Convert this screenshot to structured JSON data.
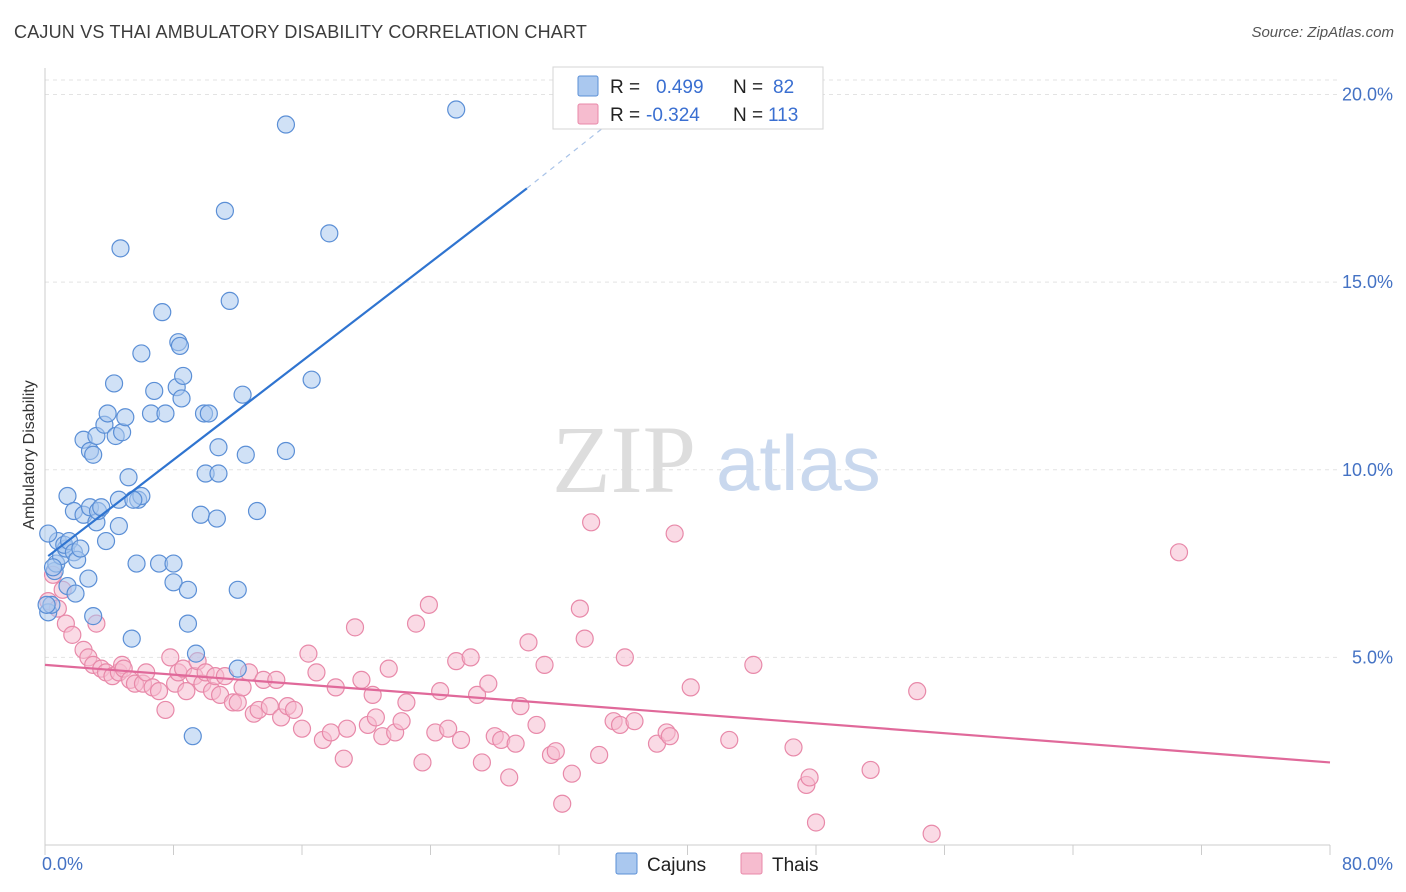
{
  "title": "CAJUN VS THAI AMBULATORY DISABILITY CORRELATION CHART",
  "source": "Source: ZipAtlas.com",
  "watermark": {
    "zip": "ZIP",
    "atlas": "atlas"
  },
  "colors": {
    "cajun_fill": "#aac8ef",
    "cajun_stroke": "#5b8fd6",
    "cajun_line": "#2f74d0",
    "thai_fill": "#f6bccf",
    "thai_stroke": "#e889a9",
    "thai_line": "#e0699a",
    "tick_text": "#4472c4",
    "grid": "#e3e3e3"
  },
  "legend": {
    "rows": [
      {
        "r_label": "R =",
        "r_value": "0.499",
        "n_label": "N =",
        "n_value": "82"
      },
      {
        "r_label": "R =",
        "r_value": "-0.324",
        "n_label": "N =",
        "n_value": "113"
      }
    ]
  },
  "chart_data": {
    "type": "scatter",
    "title": "CAJUN VS THAI AMBULATORY DISABILITY CORRELATION CHART",
    "xlabel": "",
    "ylabel": "Ambulatory Disability",
    "xlim": [
      0,
      80
    ],
    "ylim": [
      0,
      20.6
    ],
    "x_tick_labels": [
      "0.0%",
      "80.0%"
    ],
    "y_ticks": [
      5,
      10,
      15,
      20
    ],
    "y_tick_labels": [
      "5.0%",
      "10.0%",
      "15.0%",
      "20.0%"
    ],
    "grid": "horizontal dashed",
    "legend_position": "top-center",
    "series": [
      {
        "name": "Cajuns",
        "r": 0.499,
        "n": 82,
        "trend": {
          "x0": 0.2,
          "y0": 7.7,
          "x1": 30.0,
          "y1": 17.5,
          "dashed_to_x": 35.0,
          "dashed_to_y": 19.2
        },
        "points": [
          [
            0.2,
            6.2
          ],
          [
            0.4,
            6.4
          ],
          [
            0.6,
            7.3
          ],
          [
            0.8,
            8.1
          ],
          [
            0.7,
            7.5
          ],
          [
            1.0,
            7.7
          ],
          [
            1.3,
            7.9
          ],
          [
            1.2,
            8.0
          ],
          [
            1.5,
            8.1
          ],
          [
            1.8,
            7.8
          ],
          [
            2.0,
            7.6
          ],
          [
            2.2,
            7.9
          ],
          [
            1.4,
            6.9
          ],
          [
            1.9,
            6.7
          ],
          [
            2.7,
            7.1
          ],
          [
            1.4,
            9.3
          ],
          [
            1.8,
            8.9
          ],
          [
            2.4,
            8.8
          ],
          [
            2.8,
            9.0
          ],
          [
            3.2,
            8.6
          ],
          [
            3.3,
            8.9
          ],
          [
            3.5,
            9.0
          ],
          [
            2.4,
            10.8
          ],
          [
            2.8,
            10.5
          ],
          [
            3.2,
            10.9
          ],
          [
            3.0,
            10.4
          ],
          [
            3.7,
            11.2
          ],
          [
            3.9,
            11.5
          ],
          [
            4.4,
            10.9
          ],
          [
            4.8,
            11.0
          ],
          [
            5.0,
            11.4
          ],
          [
            4.6,
            8.5
          ],
          [
            3.8,
            8.1
          ],
          [
            4.6,
            9.2
          ],
          [
            5.2,
            9.8
          ],
          [
            5.8,
            9.2
          ],
          [
            6.0,
            9.3
          ],
          [
            5.5,
            9.2
          ],
          [
            4.3,
            12.3
          ],
          [
            6.6,
            11.5
          ],
          [
            6.0,
            13.1
          ],
          [
            6.8,
            12.1
          ],
          [
            7.5,
            11.5
          ],
          [
            7.3,
            14.2
          ],
          [
            8.2,
            12.2
          ],
          [
            8.3,
            13.4
          ],
          [
            8.4,
            13.3
          ],
          [
            8.5,
            11.9
          ],
          [
            8.6,
            12.5
          ],
          [
            9.9,
            11.5
          ],
          [
            10.2,
            11.5
          ],
          [
            10.8,
            10.6
          ],
          [
            10.0,
            9.9
          ],
          [
            10.8,
            9.9
          ],
          [
            12.5,
            10.4
          ],
          [
            9.7,
            8.8
          ],
          [
            10.7,
            8.7
          ],
          [
            13.2,
            8.9
          ],
          [
            4.7,
            15.9
          ],
          [
            11.2,
            16.9
          ],
          [
            11.5,
            14.5
          ],
          [
            12.3,
            12.0
          ],
          [
            15.0,
            10.5
          ],
          [
            16.6,
            12.4
          ],
          [
            17.7,
            16.3
          ],
          [
            15.0,
            19.2
          ],
          [
            25.6,
            19.6
          ],
          [
            3.0,
            6.1
          ],
          [
            5.4,
            5.5
          ],
          [
            5.7,
            7.5
          ],
          [
            7.1,
            7.5
          ],
          [
            8.0,
            7.5
          ],
          [
            8.0,
            7.0
          ],
          [
            8.9,
            6.8
          ],
          [
            12.0,
            6.8
          ],
          [
            8.9,
            5.9
          ],
          [
            9.4,
            5.1
          ],
          [
            12.0,
            4.7
          ],
          [
            9.2,
            2.9
          ],
          [
            0.1,
            6.4
          ],
          [
            0.2,
            8.3
          ],
          [
            0.5,
            7.4
          ]
        ]
      },
      {
        "name": "Thais",
        "r": -0.324,
        "n": 113,
        "trend": {
          "x0": 0,
          "y0": 4.8,
          "x1": 80,
          "y1": 2.2
        },
        "points": [
          [
            0.2,
            6.5
          ],
          [
            0.5,
            7.2
          ],
          [
            0.8,
            6.3
          ],
          [
            1.1,
            6.8
          ],
          [
            1.3,
            5.9
          ],
          [
            1.7,
            5.6
          ],
          [
            2.4,
            5.2
          ],
          [
            2.7,
            5.0
          ],
          [
            3.2,
            5.9
          ],
          [
            3.0,
            4.8
          ],
          [
            3.5,
            4.7
          ],
          [
            3.8,
            4.6
          ],
          [
            4.2,
            4.5
          ],
          [
            4.6,
            4.6
          ],
          [
            4.8,
            4.8
          ],
          [
            4.9,
            4.7
          ],
          [
            5.3,
            4.4
          ],
          [
            5.6,
            4.3
          ],
          [
            6.1,
            4.3
          ],
          [
            6.3,
            4.6
          ],
          [
            6.7,
            4.2
          ],
          [
            7.1,
            4.1
          ],
          [
            7.5,
            3.6
          ],
          [
            7.8,
            5.0
          ],
          [
            8.1,
            4.3
          ],
          [
            8.3,
            4.6
          ],
          [
            8.6,
            4.7
          ],
          [
            8.8,
            4.1
          ],
          [
            9.3,
            4.5
          ],
          [
            9.5,
            4.9
          ],
          [
            9.8,
            4.3
          ],
          [
            10.0,
            4.6
          ],
          [
            10.4,
            4.1
          ],
          [
            10.6,
            4.5
          ],
          [
            10.9,
            4.0
          ],
          [
            11.2,
            4.5
          ],
          [
            11.7,
            3.8
          ],
          [
            12.0,
            3.8
          ],
          [
            12.3,
            4.2
          ],
          [
            12.7,
            4.6
          ],
          [
            13.0,
            3.5
          ],
          [
            13.3,
            3.6
          ],
          [
            13.6,
            4.4
          ],
          [
            14.0,
            3.7
          ],
          [
            14.4,
            4.4
          ],
          [
            14.7,
            3.4
          ],
          [
            15.1,
            3.7
          ],
          [
            15.5,
            3.6
          ],
          [
            16.0,
            3.1
          ],
          [
            16.4,
            5.1
          ],
          [
            16.9,
            4.6
          ],
          [
            17.3,
            2.8
          ],
          [
            17.8,
            3.0
          ],
          [
            18.1,
            4.2
          ],
          [
            18.6,
            2.3
          ],
          [
            18.8,
            3.1
          ],
          [
            19.3,
            5.8
          ],
          [
            19.7,
            4.4
          ],
          [
            20.1,
            3.2
          ],
          [
            20.4,
            4.0
          ],
          [
            20.6,
            3.4
          ],
          [
            21.0,
            2.9
          ],
          [
            21.4,
            4.7
          ],
          [
            21.8,
            3.0
          ],
          [
            22.2,
            3.3
          ],
          [
            22.5,
            3.8
          ],
          [
            23.1,
            5.9
          ],
          [
            23.5,
            2.2
          ],
          [
            23.9,
            6.4
          ],
          [
            24.3,
            3.0
          ],
          [
            24.6,
            4.1
          ],
          [
            25.1,
            3.1
          ],
          [
            25.6,
            4.9
          ],
          [
            25.9,
            2.8
          ],
          [
            26.5,
            5.0
          ],
          [
            26.9,
            4.0
          ],
          [
            27.2,
            2.2
          ],
          [
            27.6,
            4.3
          ],
          [
            28.0,
            2.9
          ],
          [
            28.4,
            2.8
          ],
          [
            28.9,
            1.8
          ],
          [
            29.3,
            2.7
          ],
          [
            29.6,
            3.7
          ],
          [
            30.1,
            5.4
          ],
          [
            30.6,
            3.2
          ],
          [
            31.1,
            4.8
          ],
          [
            31.5,
            2.4
          ],
          [
            31.8,
            2.5
          ],
          [
            32.2,
            1.1
          ],
          [
            32.8,
            1.9
          ],
          [
            33.3,
            6.3
          ],
          [
            33.6,
            5.5
          ],
          [
            34.0,
            8.6
          ],
          [
            34.5,
            2.4
          ],
          [
            35.4,
            3.3
          ],
          [
            35.8,
            3.2
          ],
          [
            36.1,
            5.0
          ],
          [
            36.7,
            3.3
          ],
          [
            38.1,
            2.7
          ],
          [
            38.7,
            3.0
          ],
          [
            38.9,
            2.9
          ],
          [
            39.2,
            8.3
          ],
          [
            40.2,
            4.2
          ],
          [
            42.6,
            2.8
          ],
          [
            44.1,
            4.8
          ],
          [
            46.6,
            2.6
          ],
          [
            47.4,
            1.6
          ],
          [
            47.6,
            1.8
          ],
          [
            48.0,
            0.6
          ],
          [
            51.4,
            2.0
          ],
          [
            54.3,
            4.1
          ],
          [
            55.2,
            0.3
          ],
          [
            70.6,
            7.8
          ]
        ]
      }
    ]
  },
  "bottom_legend": [
    {
      "label": "Cajuns"
    },
    {
      "label": "Thais"
    }
  ]
}
